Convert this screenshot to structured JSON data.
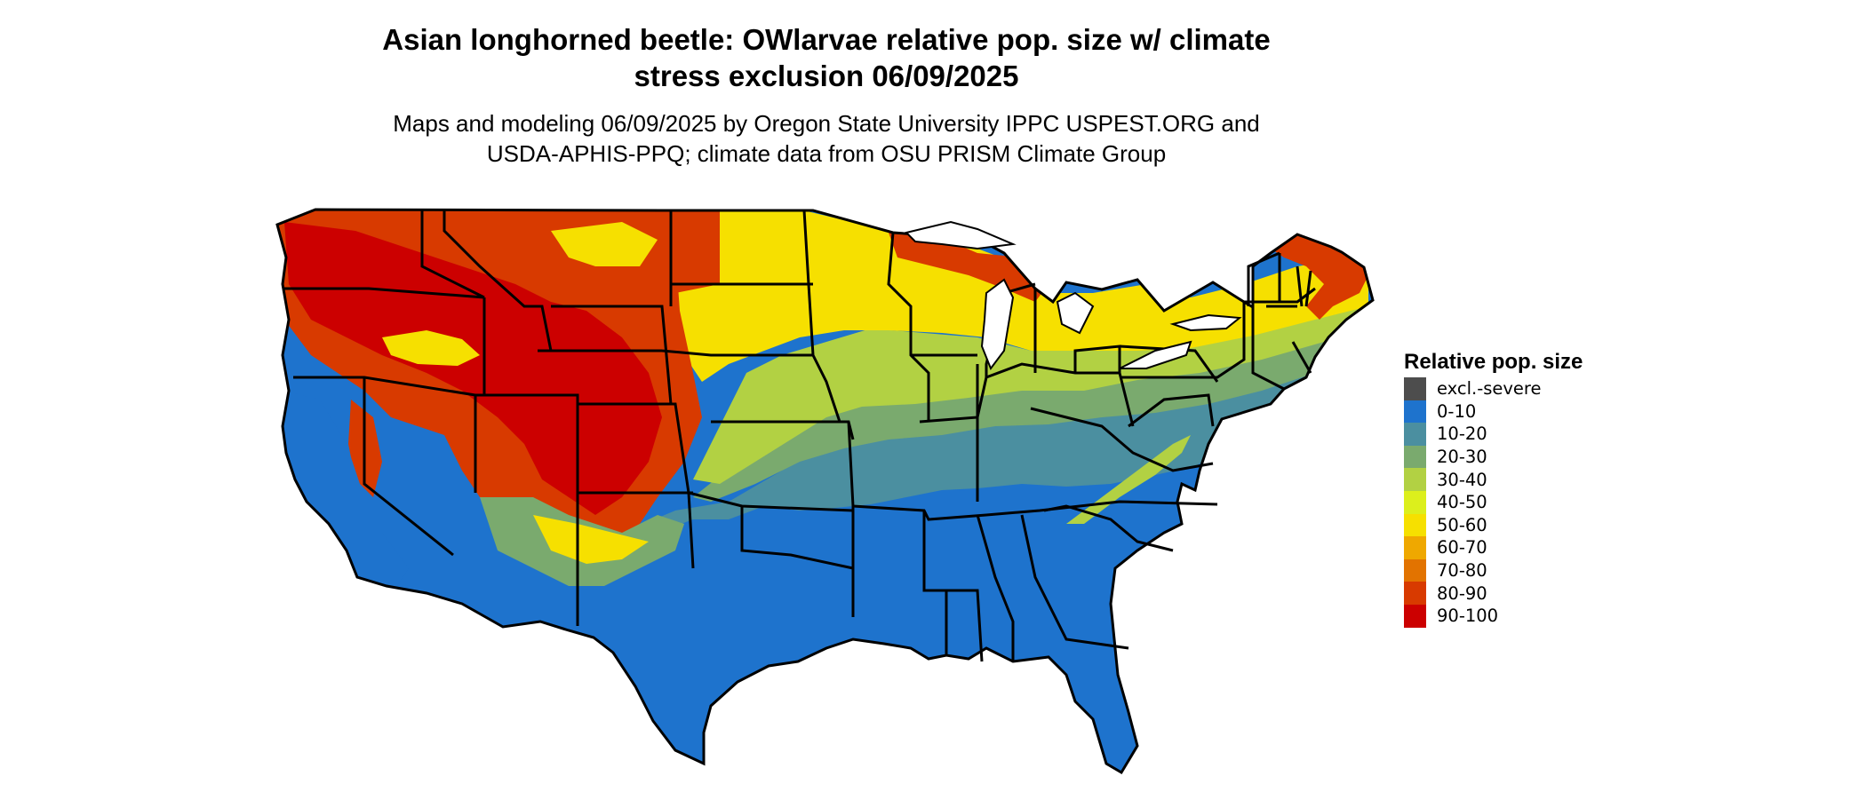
{
  "title_line1": "Asian longhorned beetle: OWlarvae relative pop. size w/ climate",
  "title_line2": "stress exclusion 06/09/2025",
  "subtitle_line1": "Maps and modeling 06/09/2025 by Oregon State University IPPC USPEST.ORG and",
  "subtitle_line2": "USDA-APHIS-PPQ; climate data from OSU PRISM Climate Group",
  "legend": {
    "title": "Relative pop. size",
    "items": [
      {
        "label": "excl.-severe",
        "color": "#4d4d4d"
      },
      {
        "label": "0-10",
        "color": "#1e73cd"
      },
      {
        "label": "10-20",
        "color": "#4b8fa0"
      },
      {
        "label": "20-30",
        "color": "#7aaa6e"
      },
      {
        "label": "30-40",
        "color": "#b2d143"
      },
      {
        "label": "40-50",
        "color": "#dcef1c"
      },
      {
        "label": "50-60",
        "color": "#f6e000"
      },
      {
        "label": "60-70",
        "color": "#efa800"
      },
      {
        "label": "70-80",
        "color": "#e27300"
      },
      {
        "label": "80-90",
        "color": "#d83a00"
      },
      {
        "label": "90-100",
        "color": "#cc0000"
      }
    ]
  },
  "map": {
    "region": "Contiguous United States",
    "boundary_color": "#000000",
    "zone_colors": {
      "blue": "#1e73cd",
      "teal": "#4b8fa0",
      "green": "#7aaa6e",
      "lightgreen": "#b2d143",
      "yellow": "#f6e000",
      "orange": "#d83a00",
      "red": "#cc0000"
    }
  }
}
